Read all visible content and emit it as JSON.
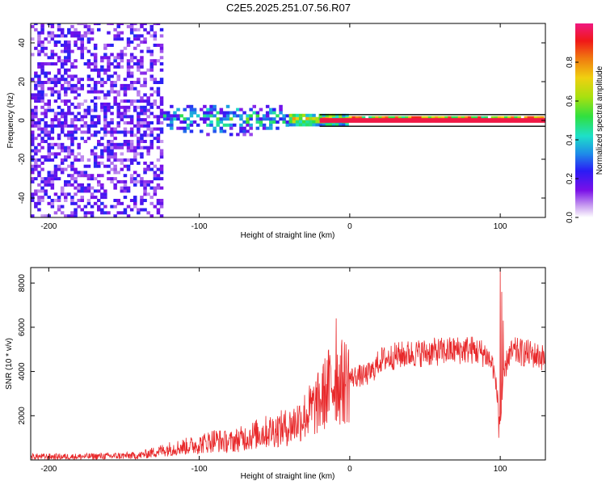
{
  "title": "C2E5.2025.251.07.56.R07",
  "colors": {
    "snr_line": "#e8292b",
    "carrier_line": "#000000"
  },
  "chart_data": [
    {
      "type": "heatmap",
      "name": "spectrogram",
      "title": "C2E5.2025.251.07.56.R07",
      "xlabel": "Height of straight line (km)",
      "ylabel": "Frequency (Hz)",
      "xlim": [
        -212,
        130
      ],
      "ylim": [
        -50,
        50
      ],
      "xticks": [
        -200,
        -100,
        0,
        100
      ],
      "xtick_labels": [
        "-200",
        "-100",
        "0",
        "100"
      ],
      "yticks": [
        -40,
        -20,
        0,
        20,
        40
      ],
      "ytick_labels": [
        "-40",
        "-20",
        "0",
        "20",
        "40"
      ],
      "colorbar": {
        "label": "Normalized spectral amplitude",
        "range": [
          0,
          1
        ],
        "ticks": [
          0.0,
          0.2,
          0.4,
          0.6,
          0.8
        ],
        "tick_labels": [
          "0.0",
          "0.2",
          "0.4",
          "0.6",
          "0.8"
        ],
        "colormap": "rainbow (violet to magenta)"
      },
      "carrier_frequency_hz": 0,
      "description_of_energy": [
        {
          "x_range": [
            -212,
            -125
          ],
          "freq_spread_hz": 50,
          "amplitude": 0.15
        },
        {
          "x_range": [
            -125,
            -40
          ],
          "freq_spread_hz": 8,
          "amplitude": 0.35
        },
        {
          "x_range": [
            -40,
            0
          ],
          "freq_spread_hz": 3,
          "amplitude": 0.7
        },
        {
          "x_range": [
            0,
            130
          ],
          "freq_spread_hz": 1,
          "amplitude": 1.0
        }
      ]
    },
    {
      "type": "line",
      "name": "snr",
      "xlabel": "Height of straight line (km)",
      "ylabel": "SNR (10 * v/v)",
      "xlim": [
        -212,
        130
      ],
      "ylim": [
        0,
        8700
      ],
      "xticks": [
        -200,
        -100,
        0,
        100
      ],
      "xtick_labels": [
        "-200",
        "-100",
        "0",
        "100"
      ],
      "yticks": [
        2000,
        4000,
        6000,
        8000
      ],
      "ytick_labels": [
        "2000",
        "4000",
        "6000",
        "8000"
      ],
      "series": [
        {
          "name": "SNR",
          "x": [
            -212,
            -180,
            -140,
            -120,
            -100,
            -90,
            -80,
            -60,
            -40,
            -30,
            -20,
            -15,
            -10,
            -5,
            0,
            5,
            10,
            15,
            20,
            30,
            40,
            60,
            80,
            90,
            95,
            98,
            100,
            102,
            105,
            110,
            120,
            130
          ],
          "values": [
            150,
            150,
            200,
            500,
            700,
            900,
            800,
            1200,
            1500,
            2000,
            2600,
            3200,
            3600,
            3500,
            3700,
            3800,
            3800,
            4000,
            4500,
            4700,
            4800,
            4900,
            5000,
            4800,
            4300,
            3000,
            1500,
            3500,
            4700,
            4900,
            4800,
            4600
          ],
          "spikes": [
            {
              "x": -9,
              "value": 6400
            },
            {
              "x": 100,
              "value": 8700
            },
            {
              "x": 101,
              "value": 7600
            },
            {
              "x": 102,
              "value": 6300
            },
            {
              "x": 99,
              "value": 1000
            }
          ]
        }
      ]
    }
  ]
}
